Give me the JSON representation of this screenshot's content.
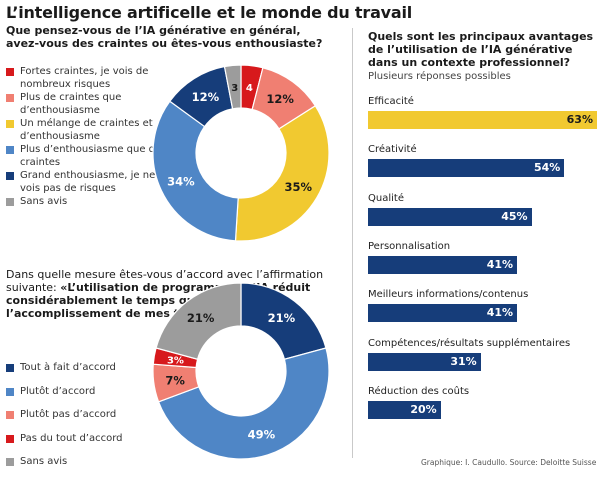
{
  "title": "L’intelligence artificelle et le monde du travail",
  "question1": {
    "text": "Que pensez-vous de l’IA générative en général, avez-vous des craintes ou êtes-vous enthousiaste?"
  },
  "question2": {
    "intro": "Dans quelle mesure êtes-vous d’accord avec l’affirmation suivante: ",
    "statement": "«L’utilisation de programmes d’IA réduit considérablement le temps que je consacre à l’accomplissement de mes tâches»"
  },
  "question3": {
    "text": "Quels sont les principaux avantages de l’utilisation de l’IA générative dans un contexte professionnel?",
    "subtitle": "Plusieurs réponses possibles"
  },
  "credit": "Graphique: I. Caudullo. Source: Deloitte Suisse",
  "chart_data": [
    {
      "type": "pie",
      "variant": "donut",
      "title": "Que pensez-vous de l’IA générative en général, avez-vous des craintes ou êtes-vous enthousiaste?",
      "categories": [
        "Fortes craintes, je vois de nombreux risques",
        "Plus de craintes que d’enthousiasme",
        "Un mélange de craintes et d’enthousiasme",
        "Plus d’enthousiasme que de craintes",
        "Grand enthousiasme, je ne vois pas de risques",
        "Sans avis"
      ],
      "values": [
        4,
        12,
        35,
        34,
        12,
        3
      ],
      "labels": [
        "4",
        "12%",
        "35%",
        "34%",
        "12%",
        "3"
      ],
      "colors": [
        "#d7191c",
        "#f07f72",
        "#f1c930",
        "#4f86c6",
        "#163d7a",
        "#9c9c9c"
      ],
      "label_colors": [
        "#ffffff",
        "#1a1a1a",
        "#1a1a1a",
        "#ffffff",
        "#ffffff",
        "#1a1a1a"
      ],
      "legend_placement": "left"
    },
    {
      "type": "pie",
      "variant": "donut",
      "title": "«L’utilisation de programmes d’IA réduit considérablement le temps que je consacre à l’accomplissement de mes tâches»",
      "categories": [
        "Tout à fait d’accord",
        "Plutôt d’accord",
        "Plutôt pas d’accord",
        "Pas du tout d’accord",
        "Sans avis"
      ],
      "values": [
        21,
        49,
        7,
        3,
        21
      ],
      "labels": [
        "21%",
        "49%",
        "7%",
        "3%",
        "21%"
      ],
      "colors": [
        "#163d7a",
        "#4f86c6",
        "#f07f72",
        "#d7191c",
        "#9c9c9c"
      ],
      "label_colors": [
        "#ffffff",
        "#ffffff",
        "#1a1a1a",
        "#ffffff",
        "#1a1a1a"
      ],
      "legend_placement": "left"
    },
    {
      "type": "bar",
      "orientation": "horizontal",
      "title": "Quels sont les principaux avantages de l’utilisation de l’IA générative dans un contexte professionnel?",
      "subtitle": "Plusieurs réponses possibles",
      "categories": [
        "Efficacité",
        "Créativité",
        "Qualité",
        "Personnalisation",
        "Meilleurs informations/contenus",
        "Compétences/résultats supplémentaires",
        "Réduction des coûts"
      ],
      "values": [
        63,
        54,
        45,
        41,
        41,
        31,
        20
      ],
      "labels": [
        "63%",
        "54%",
        "45%",
        "41%",
        "41%",
        "31%",
        "20%"
      ],
      "colors": [
        "#f1c930",
        "#163d7a",
        "#163d7a",
        "#163d7a",
        "#163d7a",
        "#163d7a",
        "#163d7a"
      ],
      "label_colors": [
        "#1a1a1a",
        "#ffffff",
        "#ffffff",
        "#ffffff",
        "#ffffff",
        "#ffffff",
        "#ffffff"
      ],
      "xlim": [
        0,
        63
      ],
      "grid": false
    }
  ]
}
